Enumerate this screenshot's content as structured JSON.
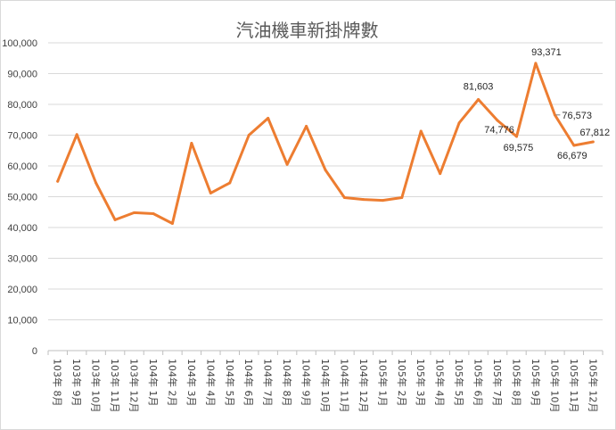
{
  "chart_data": {
    "type": "line",
    "title": "汽油機車新掛牌數",
    "xlabel": "",
    "ylabel": "",
    "ylim": [
      0,
      100000
    ],
    "yticks": [
      0,
      10000,
      20000,
      30000,
      40000,
      50000,
      60000,
      70000,
      80000,
      90000,
      100000
    ],
    "ytick_labels": [
      "0",
      "10,000",
      "20,000",
      "30,000",
      "40,000",
      "50,000",
      "60,000",
      "70,000",
      "80,000",
      "90,000",
      "100,000"
    ],
    "grid": true,
    "legend": "none",
    "line_color": "#ED7D31",
    "categories": [
      "103年 8月",
      "103年 9月",
      "103年 10月",
      "103年 11月",
      "103年 12月",
      "104年 1月",
      "104年 2月",
      "104年 3月",
      "104年 4月",
      "104年 5月",
      "104年 6月",
      "104年 7月",
      "104年 8月",
      "104年 9月",
      "104年 10月",
      "104年 11月",
      "104年 12月",
      "105年 1月",
      "105年 2月",
      "105年 3月",
      "105年 4月",
      "105年 5月",
      "105年 6月",
      "105年 7月",
      "105年 8月",
      "105年 9月",
      "105年 10月",
      "105年 11月",
      "105年 12月"
    ],
    "series": [
      {
        "values": [
          55000,
          70200,
          54500,
          42500,
          44800,
          44500,
          41300,
          67400,
          51200,
          54500,
          70000,
          75500,
          60500,
          72900,
          58700,
          49700,
          49100,
          48800,
          49700,
          71300,
          57500,
          74000,
          81603,
          74776,
          69575,
          93371,
          76573,
          66679,
          67812
        ]
      }
    ],
    "data_labels": [
      {
        "index": 22,
        "text": "81,603"
      },
      {
        "index": 23,
        "text": "74,776"
      },
      {
        "index": 24,
        "text": "69,575"
      },
      {
        "index": 25,
        "text": "93,371"
      },
      {
        "index": 26,
        "text": "76,573"
      },
      {
        "index": 27,
        "text": "66,679"
      },
      {
        "index": 28,
        "text": "67,812"
      }
    ]
  }
}
